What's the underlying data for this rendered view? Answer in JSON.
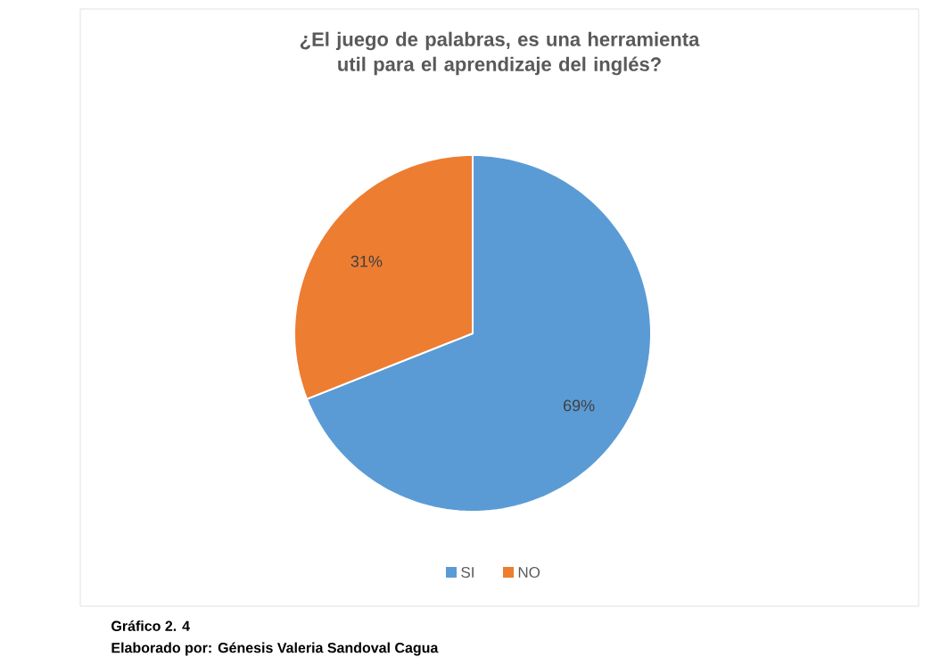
{
  "chart_data": {
    "type": "pie",
    "title": "¿El juego de palabras, es una herramienta util para el aprendizaje del inglés?",
    "categories": [
      "SI",
      "NO"
    ],
    "values": [
      69,
      31
    ],
    "value_labels": [
      "69%",
      "31%"
    ],
    "colors": [
      "#5b9bd5",
      "#ed7d31"
    ],
    "legend": "bottom",
    "annotations": [
      "**Gráfico 2. 4**",
      "**Elaborado por: Génesis Valeria Sandoval Cagua**"
    ]
  }
}
